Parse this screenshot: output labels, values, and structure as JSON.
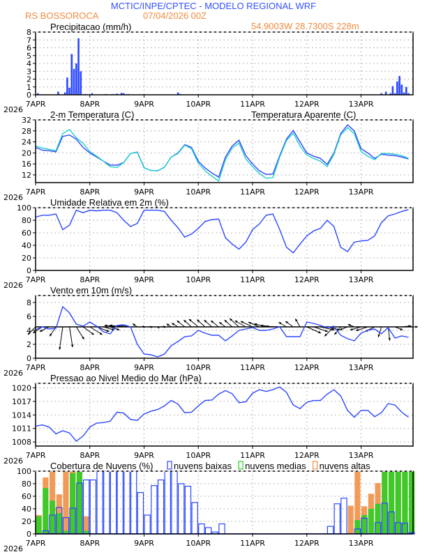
{
  "header": {
    "title": "MCTIC/INPE/CPTEC - MODELO REGIONAL WRF",
    "station": "RS BOSSOROCA",
    "run": "07/04/2026 00Z",
    "location": "54.9003W 28.7300S 228m"
  },
  "colors": {
    "title": "#3050ff",
    "orange": "#f08a3c",
    "blue": "#2a46ff",
    "cyan": "#20cccc",
    "green": "#22d022",
    "grid": "#a0a0a0"
  },
  "x_axis": {
    "day_labels": [
      "7APR",
      "8APR",
      "9APR",
      "10APR",
      "11APR",
      "12APR",
      "13APR"
    ],
    "year_label": "2026"
  },
  "chart_data": [
    {
      "id": "precip",
      "type": "bar",
      "title": "Precipitacao (mm/h)",
      "ylim": [
        0,
        8
      ],
      "yticks": [
        0,
        1,
        2,
        3,
        4,
        5,
        6,
        7,
        8
      ],
      "grid": true,
      "bars": [
        {
          "time": "07APR 01Z",
          "value": 0.2
        },
        {
          "time": "07APR 10Z",
          "value": 0.4
        },
        {
          "time": "07APR 13Z",
          "value": 0.3
        },
        {
          "time": "07APR 14Z",
          "value": 2.2
        },
        {
          "time": "07APR 15Z",
          "value": 0.9
        },
        {
          "time": "07APR 16Z",
          "value": 5.2
        },
        {
          "time": "07APR 17Z",
          "value": 3.3
        },
        {
          "time": "07APR 18Z",
          "value": 4.0
        },
        {
          "time": "07APR 19Z",
          "value": 7.2
        },
        {
          "time": "07APR 20Z",
          "value": 3.0
        },
        {
          "time": "07APR 22Z",
          "value": 0.1
        },
        {
          "time": "08APR 01Z",
          "value": 0.2
        },
        {
          "time": "08APR 07Z",
          "value": 0.1
        },
        {
          "time": "08APR 10Z",
          "value": 0.1
        },
        {
          "time": "08APR 12Z",
          "value": 0.15
        },
        {
          "time": "08APR 14Z",
          "value": 0.25
        },
        {
          "time": "08APR 15Z",
          "value": 0.2
        },
        {
          "time": "08APR 17Z",
          "value": 0.1
        },
        {
          "time": "09APR 15Z",
          "value": 0.3
        },
        {
          "time": "09APR 16Z",
          "value": 0.1
        },
        {
          "time": "13APR 09Z",
          "value": 0.2
        },
        {
          "time": "13APR 11Z",
          "value": 0.4
        },
        {
          "time": "13APR 13Z",
          "value": 0.2
        },
        {
          "time": "13APR 14Z",
          "value": 1.1
        },
        {
          "time": "13APR 15Z",
          "value": 0.2
        },
        {
          "time": "13APR 16Z",
          "value": 1.7
        },
        {
          "time": "13APR 17Z",
          "value": 2.4
        },
        {
          "time": "13APR 18Z",
          "value": 1.3
        },
        {
          "time": "13APR 19Z",
          "value": 0.3
        },
        {
          "time": "13APR 20Z",
          "value": 1.0
        },
        {
          "time": "13APR 21Z",
          "value": 0.2
        }
      ]
    },
    {
      "id": "temp",
      "type": "line",
      "title": "2-m Temperatura (C)",
      "ylim": [
        9.2,
        32
      ],
      "yticks": [
        12,
        16,
        20,
        24,
        28,
        32
      ],
      "grid": true,
      "series": [
        {
          "name": "2-m Temperatura (C)",
          "color": "blue",
          "values": [
            22,
            21,
            20.8,
            20.4,
            26,
            26.5,
            25,
            22,
            20,
            18.5,
            17,
            15.6,
            15.5,
            16.5,
            19.8,
            20.3,
            14.6,
            13.6,
            13.5,
            14.8,
            18.5,
            20,
            23,
            22,
            17,
            14.5,
            12.7,
            11.2,
            18.5,
            22.5,
            24.6,
            19,
            16,
            13.5,
            12.2,
            12.3,
            19,
            25,
            28.2,
            24,
            20,
            18.8,
            18,
            15.8,
            20,
            27,
            30.2,
            28,
            21.5,
            20,
            18,
            19.5,
            19.2,
            19,
            18.5,
            17.8
          ]
        },
        {
          "name": "Temperatura Aparente (C)",
          "color": "cyan",
          "values": [
            22.5,
            21.8,
            21.3,
            20.8,
            27,
            28.5,
            25.5,
            23.5,
            20.5,
            18.8,
            17,
            15,
            14.7,
            16.5,
            19.8,
            20.2,
            14.6,
            13.6,
            13.5,
            14.8,
            18.5,
            19.8,
            22.8,
            21.5,
            16.3,
            13.5,
            11.5,
            9.8,
            17.5,
            21.8,
            23.6,
            17.8,
            15,
            12.5,
            10.8,
            11,
            18.5,
            24.5,
            27.2,
            22.5,
            19.2,
            18,
            17,
            15,
            19.5,
            26.5,
            29.2,
            27,
            20.5,
            18.8,
            17.5,
            19.8,
            19.8,
            19.5,
            19,
            18
          ]
        }
      ]
    },
    {
      "id": "rh",
      "type": "line",
      "title": "Umidade Relativa em 2m (%)",
      "ylim": [
        0,
        100
      ],
      "yticks": [
        0,
        20,
        40,
        60,
        80,
        100
      ],
      "grid": true,
      "series": [
        {
          "color": "blue",
          "values": [
            85,
            88,
            88,
            90,
            65,
            72,
            96,
            92,
            96,
            95,
            96,
            96,
            92,
            80,
            70,
            75,
            96,
            96,
            96,
            94,
            80,
            68,
            53,
            58,
            67,
            78,
            81,
            82,
            52,
            42,
            34,
            45,
            65,
            74,
            88,
            90,
            65,
            37,
            28,
            42,
            55,
            63,
            67,
            80,
            70,
            37,
            30,
            45,
            47,
            48,
            55,
            76,
            87,
            90,
            94,
            97
          ]
        }
      ]
    },
    {
      "id": "wind",
      "type": "line",
      "title": "Vento em 10m (m/s)",
      "ylim": [
        0,
        9
      ],
      "yticks": [
        0,
        2,
        4,
        6,
        8
      ],
      "grid": true,
      "series": [
        {
          "color": "blue",
          "values": [
            4.1,
            4.5,
            4.2,
            4.3,
            7.4,
            6.5,
            4.9,
            4.6,
            5.2,
            4.6,
            3.8,
            3.5,
            4.7,
            4.8,
            4.5,
            2,
            0.6,
            0.5,
            0.2,
            0.6,
            1.8,
            2.4,
            3.1,
            3.2,
            4,
            3.6,
            3.3,
            3.3,
            2.5,
            3.2,
            4,
            4.2,
            4.4,
            4,
            4,
            4.2,
            4.5,
            3.1,
            3.1,
            3.1,
            5.2,
            5,
            4.7,
            4.4,
            4.6,
            3.3,
            2.8,
            2.5,
            3.6,
            4,
            4.2,
            3.5,
            4.4,
            2.9,
            3.2,
            3
          ]
        }
      ],
      "vectors": {
        "baseline": 4.5,
        "u": [
          -2.5,
          -3,
          -3,
          -2,
          -1,
          1,
          2.5,
          3.5,
          4,
          4,
          3.5,
          3,
          -4,
          -4.5,
          -4,
          -1.5,
          -0.4,
          -0.4,
          -0.2,
          -0.5,
          -1.5,
          -2,
          -2.5,
          -2.5,
          -3,
          -2.6,
          -2.5,
          -2.5,
          -2,
          -2.5,
          -3,
          -3.5,
          -3.8,
          -3.5,
          -3.8,
          -4,
          -4.5,
          -2.5,
          -2.5,
          -1.5,
          4.5,
          4.5,
          4.5,
          4,
          -3,
          -2,
          -2.5,
          -2,
          -3.5,
          -3.8,
          -3,
          -1,
          0.5,
          2.5,
          3,
          3
        ],
        "v": [
          -2.5,
          -2,
          -1.5,
          -3,
          -7.3,
          -6.5,
          -4,
          -2.5,
          -2.5,
          -1.5,
          -1,
          -1,
          0.5,
          0.5,
          0.5,
          1,
          0.4,
          0.2,
          0.1,
          0.3,
          1,
          1.2,
          2,
          2.2,
          2.5,
          2.3,
          2.2,
          2,
          1.5,
          2.2,
          2.7,
          2,
          1.8,
          1.5,
          1,
          0.5,
          0.2,
          1.5,
          1.8,
          2.6,
          -2,
          -1.5,
          -1,
          -1,
          -3,
          -2.5,
          -1,
          0.8,
          -1,
          -1.2,
          -1.5,
          -3.3,
          -4.4,
          -1,
          0.3,
          0
        ]
      }
    },
    {
      "id": "pressure",
      "type": "line",
      "title": "Pressao ao Nivel Medio do Mar (hPa)",
      "ylim": [
        1007.1,
        1021
      ],
      "yticks": [
        1008,
        1011,
        1014,
        1017,
        1020
      ],
      "grid": true,
      "series": [
        {
          "color": "blue",
          "values": [
            1011.5,
            1011.8,
            1011.3,
            1009.8,
            1010.5,
            1010,
            1008.2,
            1009.3,
            1011.3,
            1012.2,
            1012.3,
            1012.6,
            1014.6,
            1014.4,
            1013,
            1012.8,
            1014.2,
            1014.8,
            1015.2,
            1016,
            1017.2,
            1016.4,
            1014.5,
            1014.6,
            1016,
            1017.2,
            1017.3,
            1018.6,
            1019.4,
            1018.7,
            1016.7,
            1016.9,
            1018.8,
            1019.6,
            1019.2,
            1019.6,
            1020.2,
            1019,
            1016.2,
            1015.4,
            1016.8,
            1017.2,
            1017.2,
            1018.6,
            1019.6,
            1018.2,
            1015,
            1013.5,
            1015,
            1015,
            1013.6,
            1014.5,
            1016.5,
            1016.2,
            1014.6,
            1013.5
          ]
        }
      ]
    },
    {
      "id": "clouds",
      "type": "bar",
      "title": "Cobertura de Nuvens (%)",
      "ylim": [
        0,
        100
      ],
      "yticks": [
        0,
        20,
        40,
        60,
        80,
        100
      ],
      "grid": true,
      "series": [
        {
          "name": "nuvens altas",
          "color": "orange",
          "style": "filled",
          "values": [
            30,
            90,
            100,
            63,
            100,
            100,
            100,
            28,
            0,
            0,
            0,
            0,
            0,
            0,
            0,
            0,
            0,
            0,
            0,
            0,
            0,
            0,
            0,
            0,
            0,
            0,
            0,
            0,
            0,
            0,
            0,
            0,
            0,
            0,
            0,
            0,
            0,
            0,
            0,
            0,
            0,
            0,
            0,
            0,
            0,
            0,
            45,
            100,
            44,
            64,
            81,
            100,
            100,
            100,
            100,
            100
          ]
        },
        {
          "name": "nuvens medias",
          "color": "green",
          "style": "filled",
          "values": [
            28,
            73,
            53,
            33,
            5,
            97,
            100,
            5,
            0,
            0,
            0,
            0,
            0,
            0,
            0,
            0,
            0,
            0,
            0,
            0,
            0,
            0,
            0,
            0,
            0,
            0,
            0,
            0,
            0,
            0,
            0,
            0,
            0,
            0,
            0,
            0,
            0,
            0,
            0,
            0,
            0,
            0,
            0,
            0,
            0,
            0,
            0,
            22,
            30,
            40,
            48,
            100,
            100,
            100,
            100,
            100
          ]
        },
        {
          "name": "nuvens baixas",
          "color": "blue",
          "style": "outline",
          "values": [
            0,
            5,
            30,
            42,
            26,
            41,
            81,
            86,
            86,
            100,
            100,
            100,
            100,
            100,
            100,
            66,
            30,
            77,
            86,
            100,
            100,
            80,
            76,
            50,
            16,
            10,
            3,
            16,
            0,
            0,
            0,
            0,
            0,
            0,
            0,
            0,
            0,
            0,
            0,
            0,
            0,
            0,
            0,
            12,
            48,
            57,
            0,
            8,
            25,
            0,
            18,
            49,
            35,
            18,
            17,
            2
          ]
        }
      ]
    }
  ],
  "times": [
    "07APR 00Z",
    "07APR 03Z",
    "07APR 06Z",
    "07APR 09Z",
    "07APR 12Z",
    "07APR 15Z",
    "07APR 18Z",
    "07APR 21Z",
    "08APR 00Z",
    "08APR 03Z",
    "08APR 06Z",
    "08APR 09Z",
    "08APR 12Z",
    "08APR 15Z",
    "08APR 18Z",
    "08APR 21Z",
    "09APR 00Z",
    "09APR 03Z",
    "09APR 06Z",
    "09APR 09Z",
    "09APR 12Z",
    "09APR 15Z",
    "09APR 18Z",
    "09APR 21Z",
    "10APR 00Z",
    "10APR 03Z",
    "10APR 06Z",
    "10APR 09Z",
    "10APR 12Z",
    "10APR 15Z",
    "10APR 18Z",
    "10APR 21Z",
    "11APR 00Z",
    "11APR 03Z",
    "11APR 06Z",
    "11APR 09Z",
    "11APR 12Z",
    "11APR 15Z",
    "11APR 18Z",
    "11APR 21Z",
    "12APR 00Z",
    "12APR 03Z",
    "12APR 06Z",
    "12APR 09Z",
    "12APR 12Z",
    "12APR 15Z",
    "12APR 18Z",
    "12APR 21Z",
    "13APR 00Z",
    "13APR 03Z",
    "13APR 06Z",
    "13APR 09Z",
    "13APR 12Z",
    "13APR 15Z",
    "13APR 18Z",
    "13APR 21Z"
  ]
}
